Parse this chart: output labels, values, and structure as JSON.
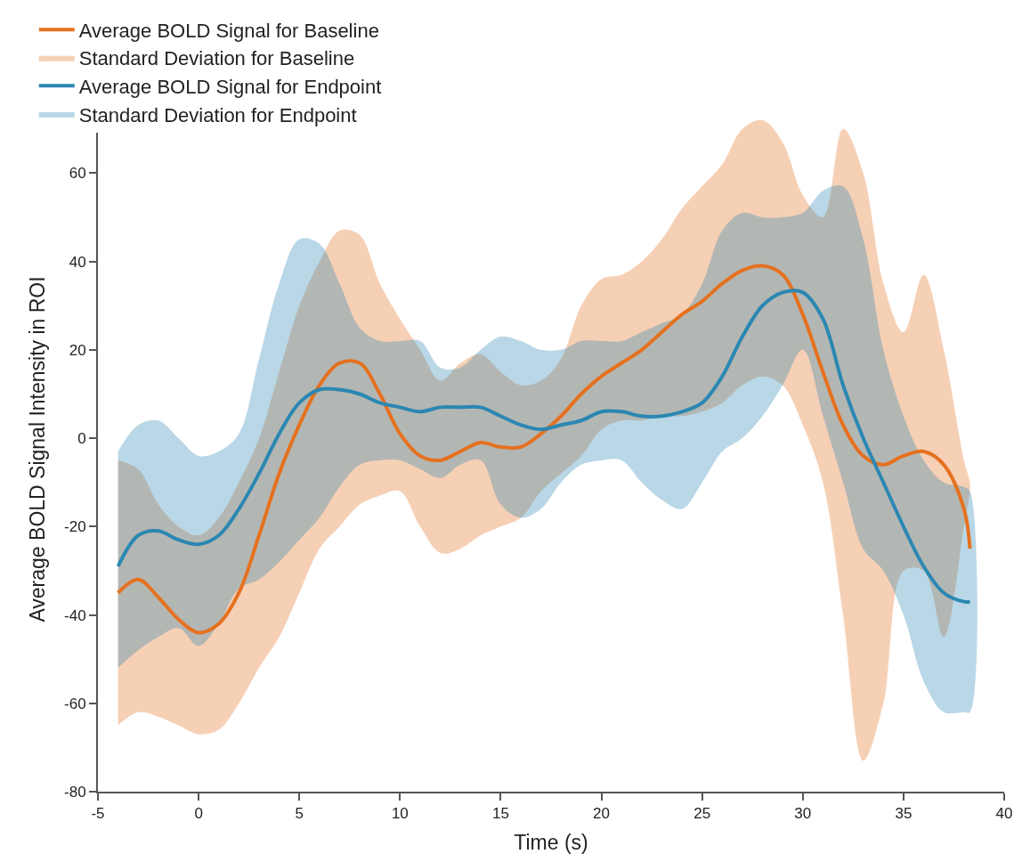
{
  "chart_data": {
    "type": "line",
    "xlabel": "Time (s)",
    "ylabel": "Average BOLD Signal Intensity in ROI",
    "annotations": [
      "Standard Deviation for Baseline",
      "Standard Deviation for Endpoint"
    ],
    "x": [
      -4,
      -3,
      -2,
      -1,
      0,
      1,
      2,
      3,
      4,
      5,
      6,
      7,
      8,
      9,
      10,
      11,
      12,
      13,
      14,
      15,
      16,
      17,
      18,
      19,
      20,
      21,
      22,
      23,
      24,
      25,
      26,
      27,
      28,
      29,
      30,
      31,
      32,
      33,
      34,
      35,
      36,
      37,
      38,
      38.3
    ],
    "series": [
      {
        "name": "Average BOLD Signal for Baseline",
        "color": "#e5711f",
        "values": [
          -35,
          -32,
          -36,
          -41,
          -44,
          -42,
          -35,
          -22,
          -8,
          3,
          12,
          17,
          17,
          10,
          1,
          -4,
          -5,
          -3,
          -1,
          -2,
          -2,
          1,
          5,
          10,
          14,
          17,
          20,
          24,
          28,
          31,
          35,
          38,
          39,
          37,
          28,
          15,
          3,
          -4,
          -6,
          -4,
          -3,
          -6,
          -16,
          -25
        ],
        "upper": [
          -5,
          -7,
          -15,
          -20,
          -22,
          -18,
          -10,
          0,
          15,
          30,
          40,
          47,
          46,
          35,
          27,
          20,
          13,
          17,
          19,
          15,
          12,
          13,
          18,
          30,
          36,
          37,
          40,
          45,
          52,
          57,
          62,
          70,
          72,
          67,
          55,
          50,
          70,
          60,
          35,
          24,
          37,
          20,
          -5,
          -10
        ],
        "lower": [
          -65,
          -62,
          -63,
          -65,
          -67,
          -66,
          -60,
          -52,
          -45,
          -35,
          -25,
          -20,
          -15,
          -13,
          -12,
          -20,
          -26,
          -25,
          -22,
          -20,
          -18,
          -12,
          -8,
          -4,
          2,
          4,
          4,
          5,
          5,
          6,
          8,
          12,
          14,
          12,
          3,
          -10,
          -40,
          -73,
          -60,
          -30,
          -30,
          -45,
          -20,
          -12
        ]
      },
      {
        "name": "Average BOLD Signal for Endpoint",
        "color": "#2b87b2",
        "values": [
          -29,
          -22,
          -21,
          -23,
          -24,
          -22,
          -16,
          -8,
          1,
          8,
          11,
          11,
          10,
          8,
          7,
          6,
          7,
          7,
          7,
          5,
          3,
          2,
          3,
          4,
          6,
          6,
          5,
          5,
          6,
          8,
          14,
          23,
          30,
          33,
          33,
          27,
          12,
          0,
          -10,
          -20,
          -29,
          -35,
          -37,
          -37
        ],
        "upper": [
          -3,
          3,
          4,
          0,
          -4,
          -3,
          1,
          18,
          35,
          45,
          44,
          35,
          25,
          22,
          22,
          22,
          16,
          16,
          20,
          23,
          22,
          20,
          20,
          22,
          22,
          22,
          24,
          26,
          28,
          35,
          47,
          51,
          50,
          50,
          51,
          56,
          57,
          45,
          20,
          5,
          -5,
          -10,
          -11,
          -12
        ],
        "lower": [
          -52,
          -48,
          -45,
          -43,
          -47,
          -42,
          -34,
          -32,
          -28,
          -23,
          -18,
          -11,
          -6,
          -5,
          -5,
          -7,
          -9,
          -6,
          -5,
          -15,
          -18,
          -16,
          -10,
          -6,
          -5,
          -5,
          -10,
          -14,
          -16,
          -10,
          -3,
          0,
          5,
          12,
          20,
          5,
          -10,
          -25,
          -30,
          -40,
          -55,
          -62,
          -62,
          -62
        ]
      }
    ],
    "xlim": [
      -5,
      40
    ],
    "xticks": [
      -5,
      0,
      5,
      10,
      15,
      20,
      25,
      30,
      35,
      40
    ],
    "ylim": [
      -80,
      75
    ],
    "yticks": [
      -80,
      -60,
      -40,
      -20,
      0,
      20,
      40,
      60
    ],
    "legend": "top left",
    "marker": "none",
    "line_style": "solid"
  }
}
